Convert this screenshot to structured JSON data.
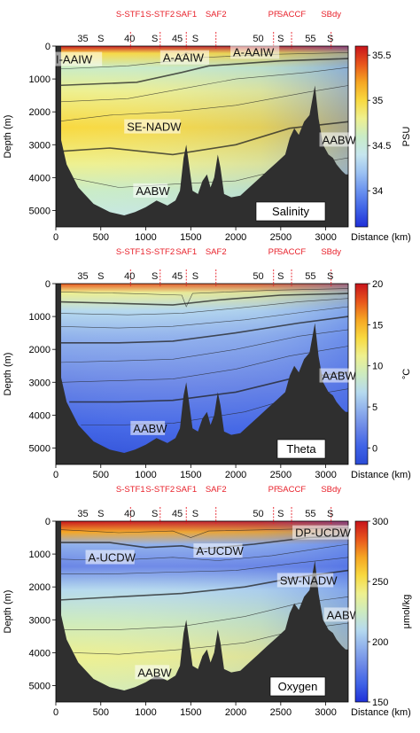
{
  "chart_data": [
    {
      "type": "heatmap",
      "panel_label": "Salinity",
      "fronts": [
        "S-STF1",
        "S-STF2",
        "SAF1",
        "SAF2",
        "PF",
        "SACCF",
        "SBdy"
      ],
      "latitude_labels": [
        "35",
        "S",
        "40",
        "S",
        "45",
        "S",
        "50",
        "S",
        "55",
        "S"
      ],
      "water_masses": [
        "I-AAIW",
        "A-AAIW",
        "A-AAIW",
        "SE-NADW",
        "AABW",
        "AABW"
      ],
      "ylabel": "Depth (m)",
      "xlabel": "Distance (km)",
      "x_ticks": [
        "0",
        "500",
        "1000",
        "1500",
        "2000",
        "2500",
        "3000"
      ],
      "y_ticks": [
        "0",
        "1000",
        "2000",
        "3000",
        "4000",
        "5000"
      ],
      "xlim": [
        0,
        3250
      ],
      "ylim": [
        5500,
        0
      ],
      "colorbar": {
        "label": "PSU",
        "ticks": [
          "35.5",
          "35",
          "34.5",
          "34"
        ],
        "range": [
          33.6,
          35.6
        ],
        "tick_values": [
          35.5,
          35,
          34.5,
          34
        ]
      }
    },
    {
      "type": "heatmap",
      "panel_label": "Theta",
      "fronts": [
        "S-STF1",
        "S-STF2",
        "SAF1",
        "SAF2",
        "PF",
        "SACCF",
        "SBdy"
      ],
      "latitude_labels": [
        "35",
        "S",
        "40",
        "S",
        "45",
        "S",
        "50",
        "S",
        "55",
        "S"
      ],
      "water_masses": [
        "AABW",
        "AABW"
      ],
      "ylabel": "Depth (m)",
      "xlabel": "Distance (km)",
      "x_ticks": [
        "0",
        "500",
        "1000",
        "1500",
        "2000",
        "2500",
        "3000"
      ],
      "y_ticks": [
        "0",
        "1000",
        "2000",
        "3000",
        "4000",
        "5000"
      ],
      "xlim": [
        0,
        3250
      ],
      "ylim": [
        5500,
        0
      ],
      "colorbar": {
        "label": "°C",
        "ticks": [
          "20",
          "15",
          "10",
          "5",
          "0"
        ],
        "range": [
          -2,
          20
        ],
        "tick_values": [
          20,
          15,
          10,
          5,
          0
        ]
      }
    },
    {
      "type": "heatmap",
      "panel_label": "Oxygen",
      "fronts": [
        "S-STF1",
        "S-STF2",
        "SAF1",
        "SAF2",
        "PF",
        "SACCF",
        "SBdy"
      ],
      "latitude_labels": [
        "35",
        "S",
        "40",
        "S",
        "45",
        "S",
        "50",
        "S",
        "55",
        "S"
      ],
      "water_masses": [
        "DP-UCDW",
        "A-UCDW",
        "A-UCDW",
        "SW-NADW",
        "AABW",
        "AABW"
      ],
      "ylabel": "Depth (m)",
      "xlabel": "Distance (km)",
      "x_ticks": [
        "0",
        "500",
        "1000",
        "1500",
        "2000",
        "2500",
        "3000"
      ],
      "y_ticks": [
        "0",
        "1000",
        "2000",
        "3000",
        "4000",
        "5000"
      ],
      "xlim": [
        0,
        3250
      ],
      "ylim": [
        5500,
        0
      ],
      "colorbar": {
        "label": "μmol/kg",
        "ticks": [
          "300",
          "250",
          "200",
          "150"
        ],
        "range": [
          150,
          300
        ],
        "tick_values": [
          300,
          250,
          200,
          150
        ]
      }
    }
  ],
  "colors": {
    "seafloor": "#2f2f2f",
    "front_label": "#e8202a",
    "salinity_scale": [
      "#1f2fd8",
      "#3f63e6",
      "#6a92ef",
      "#9cc2f2",
      "#c6e6ee",
      "#c9ecc6",
      "#eef08f",
      "#f8d940",
      "#f5a623",
      "#e8561c",
      "#c8141c"
    ],
    "theta_scale": [
      "#2a4bd6",
      "#3f63e6",
      "#6a86e6",
      "#8fb0ec",
      "#b6daee",
      "#cdebbf",
      "#eef08f",
      "#f8d940",
      "#f5a623",
      "#e8561c",
      "#c8141c"
    ],
    "oxygen_scale": [
      "#1f2fd8",
      "#3f63e6",
      "#6a86e6",
      "#8fb0ec",
      "#b6daee",
      "#cdebbf",
      "#eef08f",
      "#f8d940",
      "#f5a623",
      "#e8561c",
      "#c8141c"
    ]
  }
}
